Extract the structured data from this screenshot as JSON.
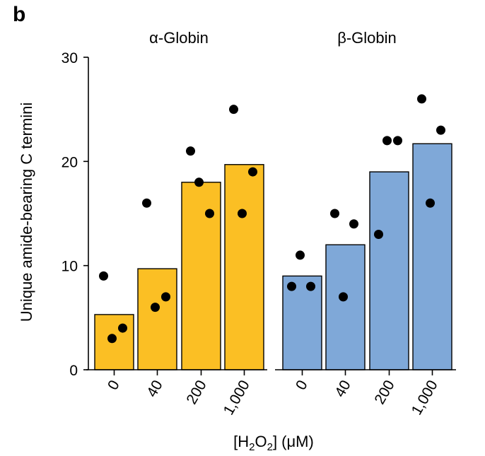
{
  "panel_label": "b",
  "chart_data": {
    "type": "bar",
    "ylabel": "Unique amide-bearing C termini",
    "xlabel": {
      "prefix": "[H",
      "sub1": "2",
      "mid": "O",
      "sub2": "2",
      "suffix": "] (μM)"
    },
    "ylim": [
      0,
      30
    ],
    "yticks": [
      "0",
      "10",
      "20",
      "30"
    ],
    "categories": [
      "0",
      "40",
      "200",
      "1,000"
    ],
    "panels": [
      {
        "title": "α-Globin",
        "color": "#fbbf24",
        "values": [
          5.3,
          9.7,
          18,
          19.7
        ],
        "points": [
          [
            9,
            3,
            4
          ],
          [
            16,
            6,
            7
          ],
          [
            21,
            18,
            15
          ],
          [
            25,
            15,
            19
          ]
        ]
      },
      {
        "title": "β-Globin",
        "color": "#7fa8d8",
        "values": [
          9,
          12,
          19,
          21.7
        ],
        "points": [
          [
            8,
            11,
            8
          ],
          [
            15,
            7,
            14
          ],
          [
            13,
            22,
            22
          ],
          [
            26,
            16,
            23
          ]
        ]
      }
    ]
  }
}
